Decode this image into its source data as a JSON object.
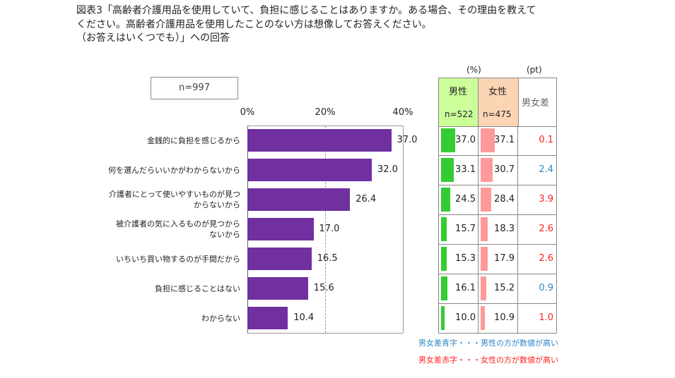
{
  "title": [
    "図表3「高齢者介護用品を使用していて、負担に感じることはありますか。ある場合、その理由を教えて",
    "ください。高齢者介護用品を使用したことのない方は想像してお答えください。",
    "（お答えはいくつでも）」への回答"
  ],
  "sample": "n=997",
  "chart_data": {
    "type": "bar",
    "orientation": "horizontal",
    "categories": [
      "金銭的に負担を感じるから",
      "何を選んだらいいかがわからないから",
      "介護者にとって使いやすいものが見つからないから",
      "被介護者の気に入るものが見つからないから",
      "いちいち買い物するのが手間だから",
      "負担に感じることはない",
      "わからない"
    ],
    "category_lines": [
      [
        "金銭的に負担を感じるから"
      ],
      [
        "何を選んだらいいかがわからないから"
      ],
      [
        "介護者にとって使いやすいものが見つ",
        "からないから"
      ],
      [
        "被介護者の気に入るものが見つから",
        "ないから"
      ],
      [
        "いちいち買い物するのが手間だから"
      ],
      [
        "負担に感じることはない"
      ],
      [
        "わからない"
      ]
    ],
    "values": [
      37.0,
      32.0,
      26.4,
      17.0,
      16.5,
      15.6,
      10.4
    ],
    "labels": [
      "37.0",
      "32.0",
      "26.4",
      "17.0",
      "16.5",
      "15.6",
      "10.4"
    ],
    "xlim": [
      0,
      40
    ],
    "ticks": [
      "0%",
      "20%",
      "40%"
    ],
    "bar_color": "#7030a0",
    "grid": true
  },
  "table": {
    "unit_pct": "(%)",
    "unit_pt": "(pt)",
    "male": {
      "label": "男性",
      "n": "n=522",
      "color": "#ccff99",
      "bar_color": "#33cc33",
      "values": [
        "37.0",
        "33.1",
        "24.5",
        "15.7",
        "15.3",
        "16.1",
        "10.0"
      ]
    },
    "female": {
      "label": "女性",
      "n": "n=475",
      "color": "#fcd5b5",
      "bar_color": "#ff9999",
      "values": [
        "37.1",
        "30.7",
        "28.4",
        "18.3",
        "17.9",
        "15.2",
        "10.9"
      ]
    },
    "diff": {
      "label": "男女差",
      "values": [
        "0.1",
        "2.4",
        "3.9",
        "2.6",
        "2.6",
        "0.9",
        "1.0"
      ],
      "higher": [
        "female",
        "male",
        "female",
        "female",
        "female",
        "male",
        "female"
      ]
    },
    "colors": {
      "male": "#2e86c1",
      "female": "#ff2020"
    }
  },
  "notes": {
    "blue": "男女差青字・・・男性の方が数値が高い",
    "red": "男女差赤字・・・女性の方が数値が高い"
  }
}
